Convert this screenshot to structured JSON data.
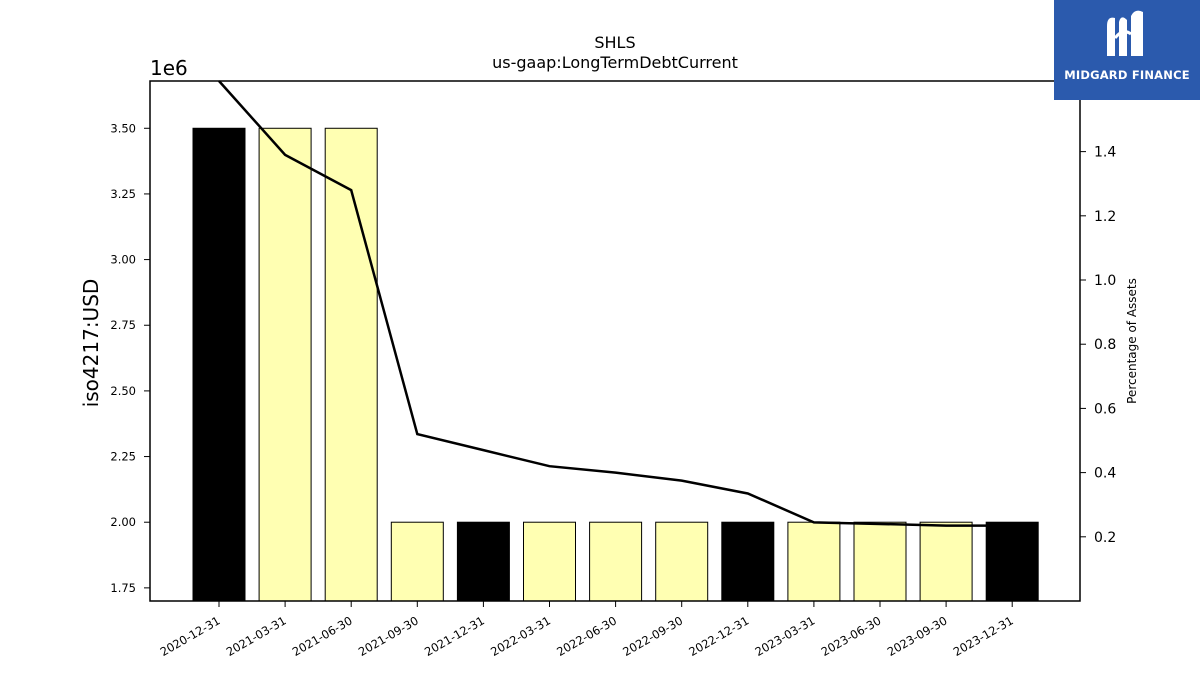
{
  "chart_data": {
    "type": "bar",
    "title": "SHLS",
    "subtitle": "us-gaap:LongTermDebtCurrent",
    "ylabel": "iso4217:USD",
    "y_offset_label": "1e6",
    "y2label": "Percentage of Assets",
    "categories": [
      "2020-12-31",
      "2021-03-31",
      "2021-06-30",
      "2021-09-30",
      "2021-12-31",
      "2022-03-31",
      "2022-06-30",
      "2022-09-30",
      "2022-12-31",
      "2023-03-31",
      "2023-06-30",
      "2023-09-30",
      "2023-12-31"
    ],
    "values": [
      3500000,
      3500000,
      3500000,
      2000000,
      2000000,
      2000000,
      2000000,
      2000000,
      2000000,
      2000000,
      2000000,
      2000000,
      2000000
    ],
    "bar_colors": [
      "#000000",
      "#ffffb2",
      "#ffffb2",
      "#ffffb2",
      "#000000",
      "#ffffb2",
      "#ffffb2",
      "#ffffb2",
      "#000000",
      "#ffffb2",
      "#ffffb2",
      "#ffffb2",
      "#000000"
    ],
    "ylim": [
      1.7,
      3.68
    ],
    "yticks": [
      "1.75",
      "2.00",
      "2.25",
      "2.50",
      "2.75",
      "3.00",
      "3.25",
      "3.50"
    ],
    "series": [
      {
        "name": "Percentage of Assets",
        "type": "line",
        "axis": "right",
        "color": "#000000",
        "values": [
          1.62,
          1.39,
          1.28,
          0.52,
          0.47,
          0.42,
          0.4,
          0.375,
          0.335,
          0.245,
          0.24,
          0.235,
          0.235
        ]
      }
    ],
    "y2lim": [
      0.0,
      1.62
    ],
    "y2ticks": [
      "0.2",
      "0.4",
      "0.6",
      "0.8",
      "1.0",
      "1.2",
      "1.4"
    ],
    "grid": false
  },
  "logo": {
    "text": "MIDGARD FINANCE",
    "color": "#2b5aad"
  }
}
